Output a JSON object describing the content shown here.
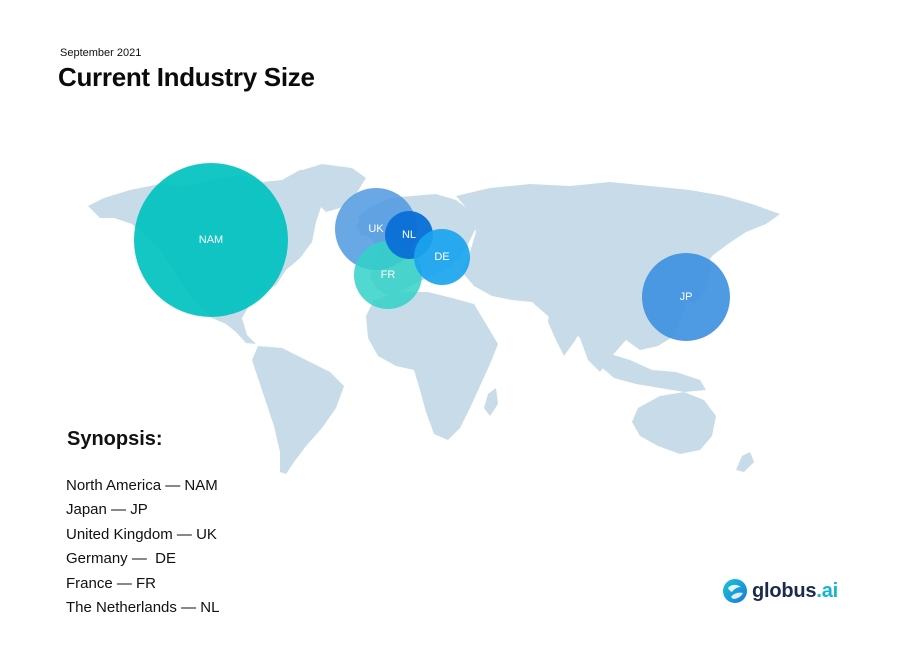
{
  "header": {
    "date": "September 2021",
    "title": "Current Industry Size"
  },
  "bubbles": [
    {
      "code": "NAM",
      "color": "#00c2c0"
    },
    {
      "code": "UK",
      "color": "#4f99e0"
    },
    {
      "code": "FR",
      "color": "#33d1c8"
    },
    {
      "code": "NL",
      "color": "#0a6fd6"
    },
    {
      "code": "DE",
      "color": "#1aa4ee"
    },
    {
      "code": "JP",
      "color": "#3b90e0"
    }
  ],
  "synopsis": {
    "title": "Synopsis:",
    "items": [
      "North America — NAM",
      "Japan — JP",
      "United Kingdom — UK",
      "Germany —  DE",
      "France — FR",
      "The Netherlands — NL"
    ]
  },
  "logo": {
    "name": "globus",
    "suffix": ".ai",
    "icon": "globe-icon"
  },
  "colors": {
    "land": "#c8dbe9",
    "text": "#111111"
  }
}
